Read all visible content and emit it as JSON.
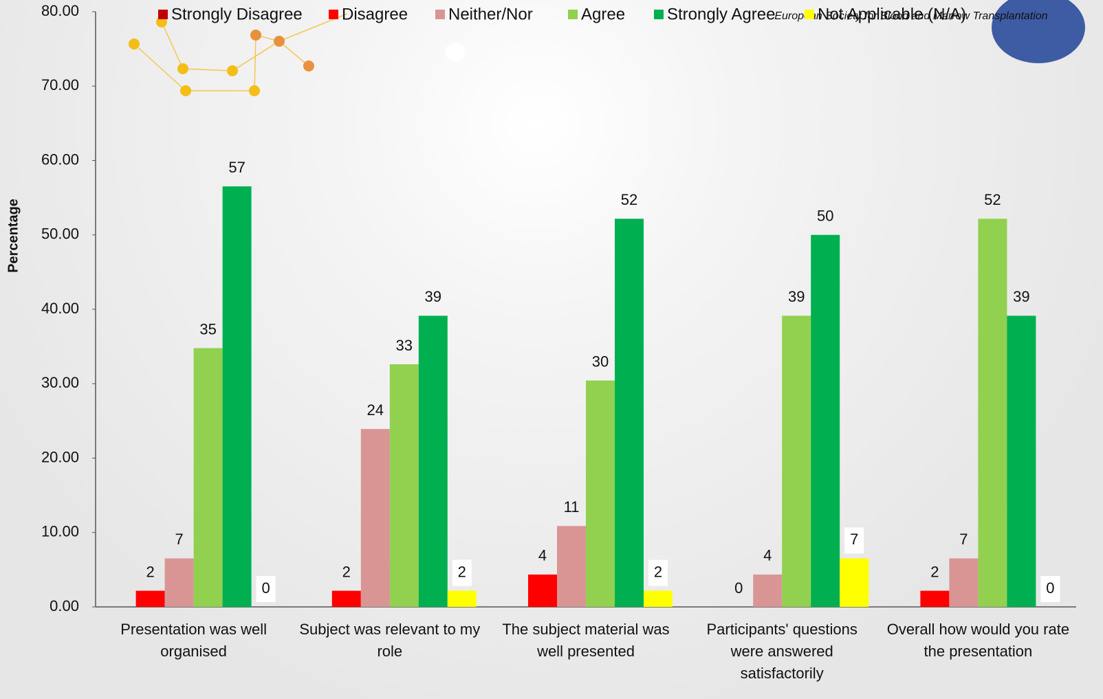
{
  "chart_data": {
    "type": "bar",
    "y_label": "Percentage",
    "logo_text": "European Society for Blood and Marrow Transplantation",
    "categories": [
      "Presentation was well organised",
      "Subject was relevant to my role",
      "The subject material was well presented",
      "Participants' questions were answered satisfactorily",
      "Overall how would you rate the presentation"
    ],
    "series": [
      {
        "name": "Strongly Disagree",
        "color": "#c00000",
        "values": [
          null,
          null,
          null,
          null,
          null
        ],
        "value_labels": [
          null,
          null,
          null,
          null,
          null
        ]
      },
      {
        "name": "Disagree",
        "color": "#ff0000",
        "values": [
          2.17,
          2.17,
          4.35,
          0,
          2.17
        ],
        "value_labels": [
          "2",
          "2",
          "4",
          "0",
          "2"
        ]
      },
      {
        "name": "Neither/Nor",
        "color": "#d99594",
        "values": [
          6.52,
          23.91,
          10.87,
          4.35,
          6.52
        ],
        "value_labels": [
          "7",
          "24",
          "11",
          "4",
          "7"
        ]
      },
      {
        "name": "Agree",
        "color": "#92d050",
        "values": [
          34.78,
          32.61,
          30.43,
          39.13,
          52.17
        ],
        "value_labels": [
          "35",
          "33",
          "30",
          "39",
          "52"
        ]
      },
      {
        "name": "Strongly Agree",
        "color": "#00b050",
        "values": [
          56.52,
          39.13,
          52.17,
          50,
          39.13
        ],
        "value_labels": [
          "57",
          "39",
          "52",
          "50",
          "39"
        ]
      },
      {
        "name": "Not Applicable (N/A)",
        "color": "#ffff00",
        "values": [
          0,
          2.17,
          2.17,
          6.52,
          0
        ],
        "value_labels": [
          "0",
          "2",
          "2",
          "7",
          "0"
        ]
      }
    ],
    "ylim": [
      0,
      80
    ],
    "yticks": [
      {
        "value": 0,
        "label": "0.00"
      },
      {
        "value": 10,
        "label": "10.00"
      },
      {
        "value": 20,
        "label": "20.00"
      },
      {
        "value": 30,
        "label": "30.00"
      },
      {
        "value": 40,
        "label": "40.00"
      },
      {
        "value": 50,
        "label": "50.00"
      },
      {
        "value": 60,
        "label": "60.00"
      },
      {
        "value": 70,
        "label": "70.00"
      },
      {
        "value": 80,
        "label": "80.00"
      }
    ],
    "grid": false
  }
}
